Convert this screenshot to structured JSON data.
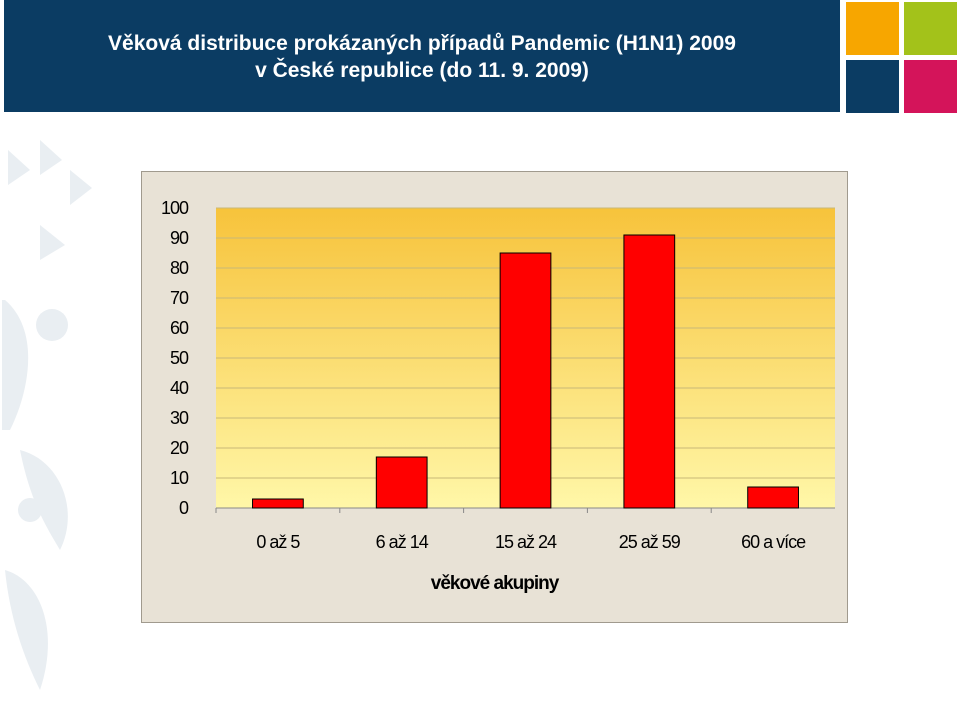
{
  "header": {
    "title_line1": "Věková distribuce prokázaných případů Pandemic (H1N1) 2009",
    "title_line2": "v České republice (do 11. 9. 2009)"
  },
  "brand_tiles": {
    "orange": "#f7a600",
    "green": "#a3c21a",
    "blue": "#0b3c63",
    "red": "#d4145a"
  },
  "chart_data": {
    "type": "bar",
    "title": "",
    "xlabel": "věkové akupiny",
    "ylabel": "",
    "categories": [
      "0 až 5",
      "6 až 14",
      "15 až 24",
      "25 až 59",
      "60 a více"
    ],
    "values": [
      3,
      17,
      85,
      91,
      7
    ],
    "ylim": [
      0,
      100
    ],
    "yticks": [
      0,
      10,
      20,
      30,
      40,
      50,
      60,
      70,
      80,
      90,
      100
    ],
    "grid": true,
    "legend": "none",
    "bar_color": "#ff0000",
    "plot_gradient": [
      "#f7c33b",
      "#fff7a8"
    ]
  }
}
